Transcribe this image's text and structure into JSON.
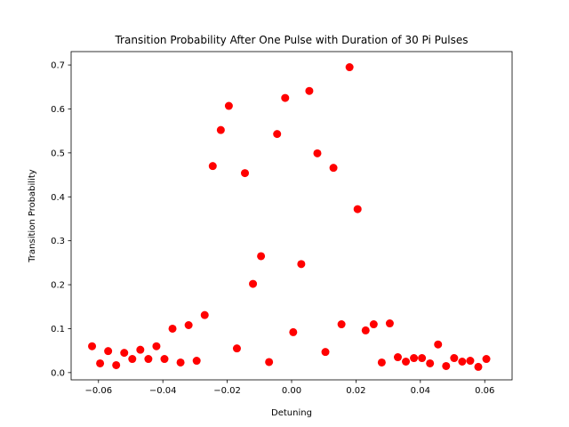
{
  "chart_data": {
    "type": "scatter",
    "title": "Transition Probability After One Pulse with Duration of 30 Pi Pulses",
    "xlabel": "Detuning",
    "ylabel": "Transition Probability",
    "xlim": [
      -0.0685,
      0.0685
    ],
    "ylim": [
      -0.0165,
      0.7305
    ],
    "xticks": [
      -0.06,
      -0.04,
      -0.02,
      0.0,
      0.02,
      0.04,
      0.06
    ],
    "xtick_labels": [
      "−0.06",
      "−0.04",
      "−0.02",
      "0.00",
      "0.02",
      "0.04",
      "0.06"
    ],
    "yticks": [
      0.0,
      0.1,
      0.2,
      0.3,
      0.4,
      0.5,
      0.6,
      0.7
    ],
    "ytick_labels": [
      "0.0",
      "0.1",
      "0.2",
      "0.3",
      "0.4",
      "0.5",
      "0.6",
      "0.7"
    ],
    "grid": false,
    "marker_color": "#ff0000",
    "points": [
      [
        -0.062,
        0.06
      ],
      [
        -0.0595,
        0.021
      ],
      [
        -0.057,
        0.049
      ],
      [
        -0.0545,
        0.017
      ],
      [
        -0.052,
        0.045
      ],
      [
        -0.0495,
        0.031
      ],
      [
        -0.047,
        0.052
      ],
      [
        -0.0445,
        0.031
      ],
      [
        -0.042,
        0.06
      ],
      [
        -0.0395,
        0.031
      ],
      [
        -0.037,
        0.1
      ],
      [
        -0.0345,
        0.023
      ],
      [
        -0.032,
        0.108
      ],
      [
        -0.0295,
        0.027
      ],
      [
        -0.027,
        0.131
      ],
      [
        -0.0245,
        0.47
      ],
      [
        -0.022,
        0.552
      ],
      [
        -0.0195,
        0.607
      ],
      [
        -0.017,
        0.055
      ],
      [
        -0.0145,
        0.454
      ],
      [
        -0.012,
        0.202
      ],
      [
        -0.0095,
        0.265
      ],
      [
        -0.007,
        0.024
      ],
      [
        -0.0045,
        0.543
      ],
      [
        -0.002,
        0.625
      ],
      [
        0.0005,
        0.092
      ],
      [
        0.003,
        0.247
      ],
      [
        0.0055,
        0.641
      ],
      [
        0.008,
        0.499
      ],
      [
        0.0105,
        0.047
      ],
      [
        0.013,
        0.466
      ],
      [
        0.0155,
        0.11
      ],
      [
        0.018,
        0.695
      ],
      [
        0.0205,
        0.372
      ],
      [
        0.023,
        0.096
      ],
      [
        0.0255,
        0.11
      ],
      [
        0.028,
        0.023
      ],
      [
        0.0305,
        0.112
      ],
      [
        0.033,
        0.035
      ],
      [
        0.0355,
        0.025
      ],
      [
        0.038,
        0.033
      ],
      [
        0.0405,
        0.033
      ],
      [
        0.043,
        0.021
      ],
      [
        0.0455,
        0.064
      ],
      [
        0.048,
        0.015
      ],
      [
        0.0505,
        0.033
      ],
      [
        0.053,
        0.025
      ],
      [
        0.0555,
        0.027
      ],
      [
        0.058,
        0.013
      ],
      [
        0.0605,
        0.031
      ]
    ]
  }
}
